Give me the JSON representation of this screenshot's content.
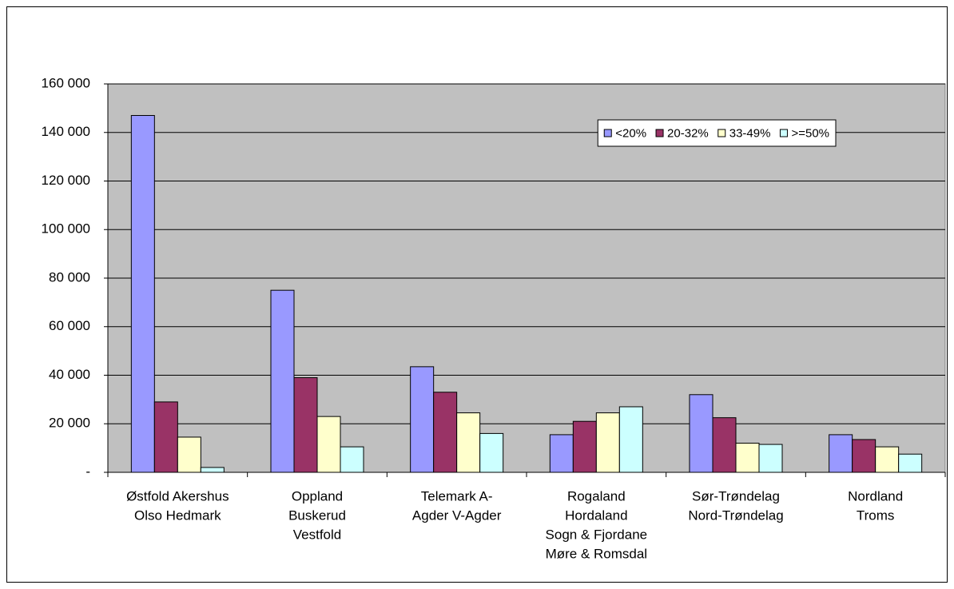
{
  "chart_data": {
    "type": "bar",
    "categories": [
      [
        "Østfold Akershus",
        "Olso Hedmark"
      ],
      [
        "Oppland",
        "Buskerud",
        "Vestfold"
      ],
      [
        "Telemark A-",
        "Agder V-Agder"
      ],
      [
        "Rogaland",
        "Hordaland",
        "Sogn & Fjordane",
        "Møre & Romsdal"
      ],
      [
        "Sør-Trøndelag",
        "Nord-Trøndelag"
      ],
      [
        "Nordland",
        "Troms"
      ]
    ],
    "series": [
      {
        "name": "<20%",
        "color": "#9999ff",
        "values": [
          147000,
          75000,
          43500,
          15500,
          32000,
          15500
        ]
      },
      {
        "name": "20-32%",
        "color": "#993366",
        "values": [
          29000,
          39000,
          33000,
          21000,
          22500,
          13500
        ]
      },
      {
        "name": "33-49%",
        "color": "#ffffcc",
        "values": [
          14500,
          23000,
          24500,
          24500,
          12000,
          10500
        ]
      },
      {
        "name": ">=50%",
        "color": "#ccffff",
        "values": [
          2000,
          10500,
          16000,
          27000,
          11500,
          7500
        ]
      }
    ],
    "ylim": [
      0,
      160000
    ],
    "yticks": [
      {
        "value": 0,
        "label": "-"
      },
      {
        "value": 20000,
        "label": "20 000"
      },
      {
        "value": 40000,
        "label": "40 000"
      },
      {
        "value": 60000,
        "label": "60 000"
      },
      {
        "value": 80000,
        "label": "80 000"
      },
      {
        "value": 100000,
        "label": "100 000"
      },
      {
        "value": 120000,
        "label": "120 000"
      },
      {
        "value": 140000,
        "label": "140 000"
      },
      {
        "value": 160000,
        "label": "160 000"
      }
    ],
    "grid": true,
    "plot_background": "#c0c0c0",
    "legend": "upper right"
  }
}
